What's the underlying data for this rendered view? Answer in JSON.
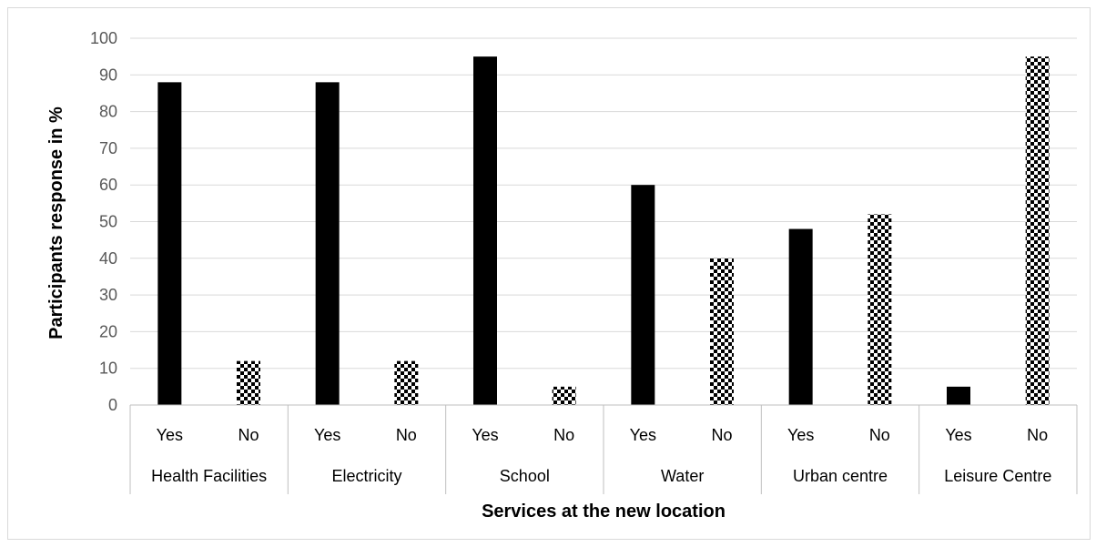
{
  "chart_data": {
    "type": "bar",
    "xlabel": "Services at the new location",
    "ylabel": "Participants response in %",
    "ylim": [
      0,
      100
    ],
    "yticks": [
      0,
      10,
      20,
      30,
      40,
      50,
      60,
      70,
      80,
      90,
      100
    ],
    "grid": true,
    "groups": [
      {
        "name": "Health Facilities",
        "bars": [
          {
            "label": "Yes",
            "value": 88
          },
          {
            "label": "No",
            "value": 12
          }
        ]
      },
      {
        "name": "Electricity",
        "bars": [
          {
            "label": "Yes",
            "value": 88
          },
          {
            "label": "No",
            "value": 12
          }
        ]
      },
      {
        "name": "School",
        "bars": [
          {
            "label": "Yes",
            "value": 95
          },
          {
            "label": "No",
            "value": 5
          }
        ]
      },
      {
        "name": "Water",
        "bars": [
          {
            "label": "Yes",
            "value": 60
          },
          {
            "label": "No",
            "value": 40
          }
        ]
      },
      {
        "name": "Urban centre",
        "bars": [
          {
            "label": "Yes",
            "value": 48
          },
          {
            "label": "No",
            "value": 52
          }
        ]
      },
      {
        "name": "Leisure Centre",
        "bars": [
          {
            "label": "Yes",
            "value": 5
          },
          {
            "label": "No",
            "value": 95
          }
        ]
      }
    ],
    "colors": {
      "yes_fill": "#000000",
      "no_pattern": "#000000",
      "grid": "#d9d9d9",
      "axis": "#bfbfbf"
    }
  }
}
